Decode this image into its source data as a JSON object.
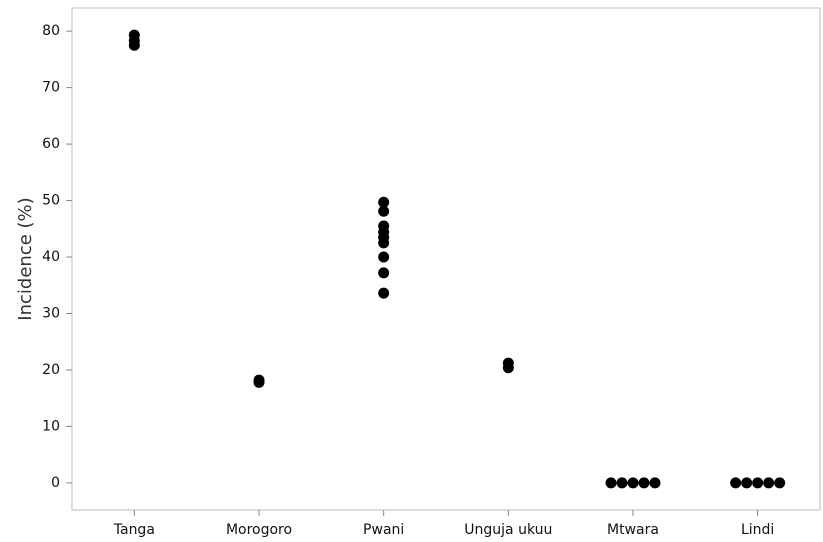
{
  "chart_data": {
    "type": "strip",
    "y_label": "Incidence (%)",
    "categories": [
      "Tanga",
      "Morogoro",
      "Pwani",
      "Unguja ukuu",
      "Mtwara",
      "Lindi"
    ],
    "values": [
      [
        79.3,
        78.3,
        77.5
      ],
      [
        18.2,
        17.8
      ],
      [
        49.7,
        48.1,
        45.5,
        44.4,
        43.5,
        42.5,
        40,
        37.2,
        33.6
      ],
      [
        21.2,
        20.4
      ],
      [
        0,
        0,
        0,
        0,
        0
      ],
      [
        0,
        0,
        0,
        0,
        0
      ]
    ],
    "color": "#000000",
    "ylim": [
      -4.8,
      84.1
    ],
    "yticks": [
      0,
      10,
      20,
      30,
      40,
      50,
      60,
      70,
      80
    ],
    "grid": false
  }
}
